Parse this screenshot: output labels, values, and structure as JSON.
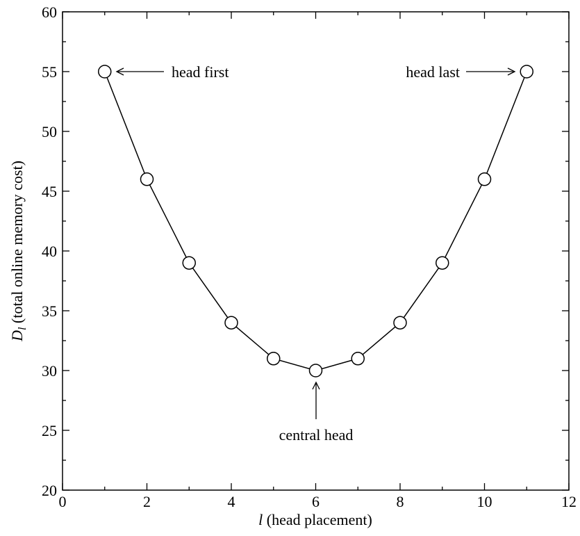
{
  "chart_data": {
    "type": "line",
    "x": [
      1,
      2,
      3,
      4,
      5,
      6,
      7,
      8,
      9,
      10,
      11
    ],
    "series": [
      {
        "values": [
          55,
          46,
          39,
          34,
          31,
          30,
          31,
          34,
          39,
          46,
          55
        ]
      }
    ],
    "xlim": [
      0,
      12
    ],
    "ylim": [
      20,
      60
    ],
    "xticks": [
      0,
      2,
      4,
      6,
      8,
      10,
      12
    ],
    "yticks": [
      20,
      25,
      30,
      35,
      40,
      45,
      50,
      55,
      60
    ],
    "xlabel": {
      "symbol": "l",
      "text": " (head placement)"
    },
    "ylabel": {
      "symbol": "D",
      "subscript": "l",
      "text": " (total online memory cost)"
    },
    "marker": "open-circle",
    "grid": false,
    "annotations": [
      {
        "text": "head first",
        "x": 1,
        "y": 55
      },
      {
        "text": "head last",
        "x": 11,
        "y": 55
      },
      {
        "text": "central head",
        "x": 6,
        "y": 30
      }
    ]
  }
}
